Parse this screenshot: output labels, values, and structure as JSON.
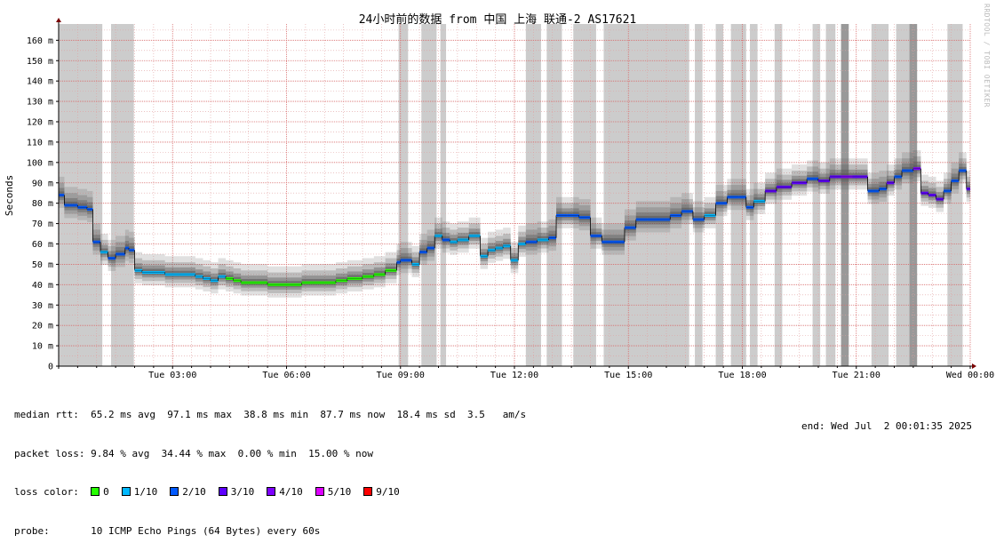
{
  "chart_data": {
    "type": "area",
    "title": "24小时前的数据 from 中国 上海 联通-2 AS17621",
    "ylabel": "Seconds",
    "watermark": "RRDTOOL / TOBI OETIKER",
    "ylim": [
      0,
      168
    ],
    "xlim": [
      0,
      24
    ],
    "y_ticks": [
      0,
      10,
      20,
      30,
      40,
      50,
      60,
      70,
      80,
      90,
      100,
      110,
      120,
      130,
      140,
      150,
      160
    ],
    "y_tick_labels": [
      "0",
      "10 m",
      "20 m",
      "30 m",
      "40 m",
      "50 m",
      "60 m",
      "70 m",
      "80 m",
      "90 m",
      "100 m",
      "110 m",
      "120 m",
      "130 m",
      "140 m",
      "150 m",
      "160 m"
    ],
    "x_ticks": [
      3,
      6,
      9,
      12,
      15,
      18,
      21,
      24
    ],
    "x_tick_labels": [
      "Tue 03:00",
      "Tue 06:00",
      "Tue 09:00",
      "Tue 12:00",
      "Tue 15:00",
      "Tue 18:00",
      "Tue 21:00",
      "Wed 00:00"
    ],
    "grid": true,
    "colors": {
      "loss_0": "#26ff00",
      "loss_1": "#00b8ff",
      "loss_2": "#0059ff",
      "loss_3": "#5e00ff",
      "loss_4": "#7e00ff",
      "loss_5": "#dd00ff",
      "loss_9": "#ff0000",
      "packet_loss_bar": "#cccccc",
      "packet_loss_bar_dark": "#999999",
      "smoke": "#555555",
      "grid": "#e0a0a0",
      "axis": "#7a0000"
    },
    "median_rtt": {
      "x": [
        0.0,
        0.15,
        0.3,
        0.5,
        0.75,
        0.9,
        1.1,
        1.3,
        1.5,
        1.75,
        1.85,
        2.0,
        2.2,
        2.5,
        2.8,
        3.2,
        3.6,
        3.8,
        4.0,
        4.2,
        4.4,
        4.6,
        4.8,
        5.0,
        5.2,
        5.5,
        5.8,
        6.1,
        6.4,
        6.7,
        7.0,
        7.3,
        7.6,
        7.8,
        8.0,
        8.3,
        8.6,
        8.9,
        9.0,
        9.1,
        9.3,
        9.5,
        9.7,
        9.9,
        10.1,
        10.3,
        10.5,
        10.8,
        11.1,
        11.3,
        11.5,
        11.7,
        11.9,
        12.1,
        12.3,
        12.6,
        12.9,
        13.1,
        13.4,
        13.7,
        14.0,
        14.3,
        14.6,
        14.9,
        15.2,
        15.5,
        15.8,
        16.1,
        16.4,
        16.7,
        17.0,
        17.3,
        17.6,
        17.9,
        18.1,
        18.3,
        18.6,
        18.9,
        19.3,
        19.7,
        20.0,
        20.3,
        20.6,
        20.9,
        21.3,
        21.6,
        21.8,
        22.0,
        22.2,
        22.5,
        22.7,
        22.9,
        23.1,
        23.3,
        23.5,
        23.7,
        23.9
      ],
      "y": [
        84,
        79,
        79,
        78,
        77,
        61,
        56,
        53,
        55,
        58,
        57,
        47,
        46,
        46,
        45,
        45,
        44,
        43,
        42,
        44,
        43,
        42,
        41,
        41,
        41,
        40,
        40,
        40,
        41,
        41,
        41,
        42,
        43,
        43,
        44,
        45,
        47,
        51,
        52,
        52,
        50,
        56,
        58,
        64,
        62,
        61,
        62,
        64,
        54,
        57,
        58,
        59,
        52,
        60,
        61,
        62,
        63,
        74,
        74,
        73,
        64,
        61,
        61,
        68,
        72,
        72,
        72,
        74,
        76,
        72,
        74,
        80,
        83,
        83,
        78,
        81,
        86,
        88,
        90,
        92,
        91,
        93,
        93,
        93,
        86,
        87,
        90,
        93,
        96,
        97,
        85,
        84,
        82,
        86,
        91,
        96,
        87
      ]
    },
    "packet_loss_spans": [
      [
        0.0,
        1.15
      ],
      [
        1.38,
        1.98
      ],
      [
        8.95,
        9.2
      ],
      [
        9.55,
        9.95
      ],
      [
        10.05,
        10.2
      ],
      [
        12.3,
        12.7
      ],
      [
        12.85,
        13.25
      ],
      [
        13.55,
        14.15
      ],
      [
        14.35,
        16.6
      ],
      [
        16.75,
        16.95
      ],
      [
        17.3,
        17.5
      ],
      [
        17.7,
        18.1
      ],
      [
        18.2,
        18.4
      ],
      [
        18.85,
        19.05
      ],
      [
        19.85,
        20.05
      ],
      [
        20.2,
        20.45
      ],
      [
        20.6,
        20.8
      ],
      [
        21.4,
        21.85
      ],
      [
        22.05,
        22.6
      ],
      [
        23.4,
        23.8
      ]
    ],
    "packet_loss_dark_spans": [
      [
        20.6,
        20.8
      ],
      [
        22.4,
        22.6
      ]
    ]
  },
  "stats": {
    "median_label": "median rtt:",
    "median_values": "65.2 ms avg  97.1 ms max  38.8 ms min  87.7 ms now  18.4 ms sd  3.5   am/s",
    "loss_label": "packet loss:",
    "loss_values": "9.84 % avg  34.44 % max  0.00 % min  15.00 % now",
    "color_label": "loss color:",
    "legend": [
      {
        "label": "0",
        "color": "#26ff00"
      },
      {
        "label": "1/10",
        "color": "#00b8ff"
      },
      {
        "label": "2/10",
        "color": "#0059ff"
      },
      {
        "label": "3/10",
        "color": "#5e00ff"
      },
      {
        "label": "4/10",
        "color": "#7e00ff"
      },
      {
        "label": "5/10",
        "color": "#dd00ff"
      },
      {
        "label": "9/10",
        "color": "#ff0000"
      }
    ],
    "probe_label": "probe:",
    "probe_value": "10 ICMP Echo Pings (64 Bytes) every 60s",
    "end": "end: Wed Jul  2 00:01:35 2025"
  }
}
